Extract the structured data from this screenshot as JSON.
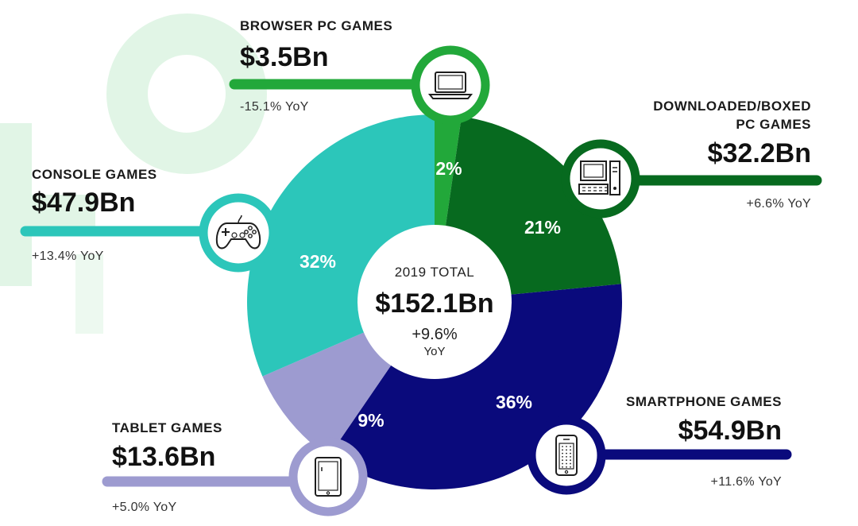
{
  "chart_data": {
    "type": "pie",
    "title": "",
    "unit": "Bn",
    "center": {
      "title": "2019 TOTAL",
      "value": "$152.1Bn",
      "growth": "+9.6%",
      "growth_suffix": "YoY"
    },
    "segments": [
      {
        "id": "browser",
        "name": "BROWSER PC GAMES",
        "name_lines": [
          "BROWSER PC GAMES"
        ],
        "value": 3.5,
        "value_label": "$3.5Bn",
        "percent": 2,
        "percent_label": "2%",
        "yoy": "-15.1% YoY",
        "color": "#22a83a",
        "icon": "laptop-icon"
      },
      {
        "id": "downloaded",
        "name": "DOWNLOADED/BOXED PC GAMES",
        "name_lines": [
          "DOWNLOADED/BOXED",
          "PC GAMES"
        ],
        "value": 32.2,
        "value_label": "$32.2Bn",
        "percent": 21,
        "percent_label": "21%",
        "yoy": "+6.6% YoY",
        "color": "#076a1f",
        "icon": "desktop-pc-icon"
      },
      {
        "id": "smartphone",
        "name": "SMARTPHONE GAMES",
        "name_lines": [
          "SMARTPHONE GAMES"
        ],
        "value": 54.9,
        "value_label": "$54.9Bn",
        "percent": 36,
        "percent_label": "36%",
        "yoy": "+11.6% YoY",
        "color": "#0a0a7c",
        "icon": "smartphone-icon"
      },
      {
        "id": "tablet",
        "name": "TABLET GAMES",
        "name_lines": [
          "TABLET GAMES"
        ],
        "value": 13.6,
        "value_label": "$13.6Bn",
        "percent": 9,
        "percent_label": "9%",
        "yoy": "+5.0% YoY",
        "color": "#9d9bd0",
        "icon": "tablet-icon"
      },
      {
        "id": "console",
        "name": "CONSOLE GAMES",
        "name_lines": [
          "CONSOLE GAMES"
        ],
        "value": 47.9,
        "value_label": "$47.9Bn",
        "percent": 32,
        "percent_label": "32%",
        "yoy": "+13.4% YoY",
        "color": "#2cc6ba",
        "icon": "gamepad-icon"
      }
    ],
    "background_color": "#e1f5e6"
  }
}
